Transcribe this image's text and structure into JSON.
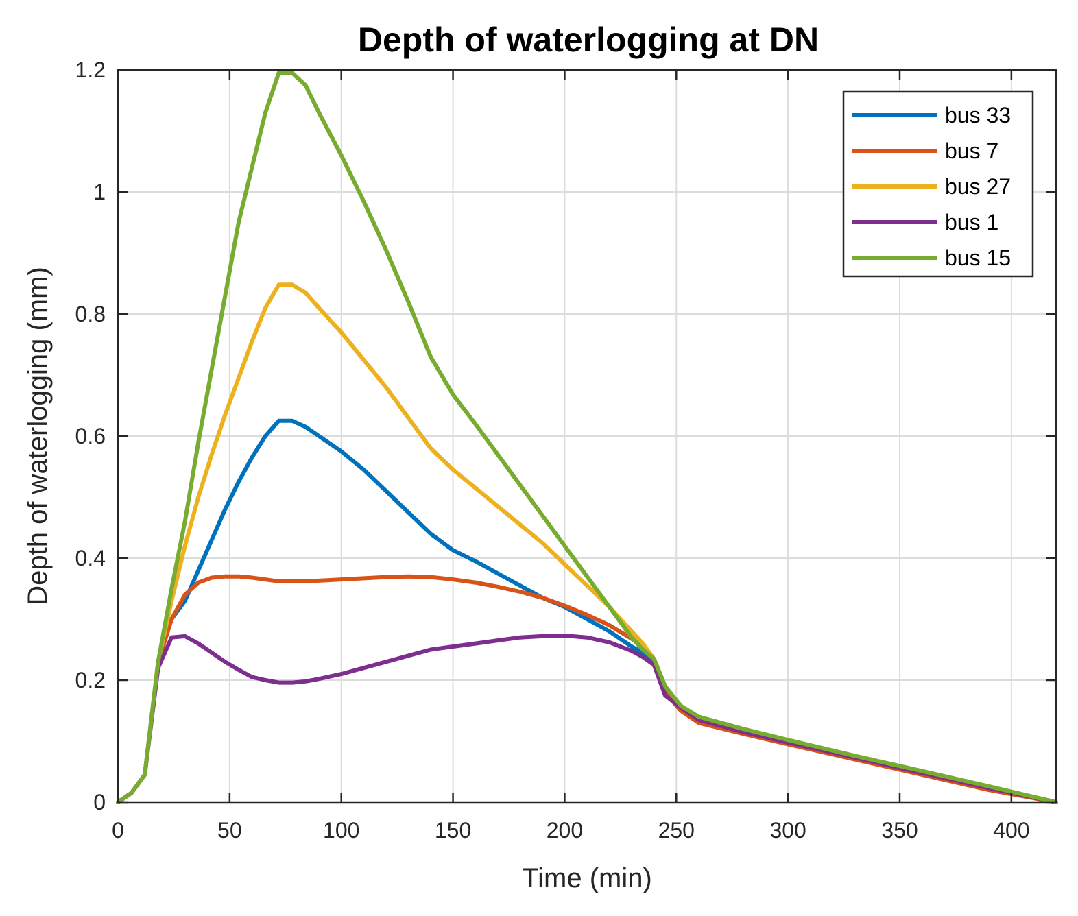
{
  "chart_data": {
    "type": "line",
    "title": "Depth of waterlogging at DN",
    "xlabel": "Time (min)",
    "ylabel": "Depth of waterlogging (mm)",
    "xlim": [
      0,
      420
    ],
    "ylim": [
      0,
      1.2
    ],
    "xticks": [
      0,
      50,
      100,
      150,
      200,
      250,
      300,
      350,
      400
    ],
    "xtick_labels": [
      "0",
      "50",
      "100",
      "150",
      "200",
      "250",
      "300",
      "350",
      "400"
    ],
    "yticks": [
      0,
      0.2,
      0.4,
      0.6,
      0.8,
      1,
      1.2
    ],
    "ytick_labels": [
      "0",
      "0.2",
      "0.4",
      "0.6",
      "0.8",
      "1",
      "1.2"
    ],
    "grid": true,
    "legend_position": "top-right",
    "series": [
      {
        "name": "bus 33",
        "color": "#0072BD",
        "x": [
          0,
          6,
          12,
          18,
          24,
          30,
          36,
          42,
          48,
          54,
          60,
          66,
          72,
          78,
          84,
          90,
          100,
          110,
          120,
          130,
          140,
          150,
          160,
          170,
          180,
          190,
          200,
          210,
          220,
          230,
          235,
          240,
          245,
          252,
          260,
          280,
          300,
          330,
          360,
          390,
          420
        ],
        "y": [
          0,
          0.015,
          0.045,
          0.23,
          0.3,
          0.33,
          0.38,
          0.43,
          0.48,
          0.525,
          0.565,
          0.6,
          0.625,
          0.625,
          0.615,
          0.6,
          0.575,
          0.545,
          0.51,
          0.475,
          0.44,
          0.413,
          0.395,
          0.375,
          0.355,
          0.335,
          0.32,
          0.3,
          0.28,
          0.255,
          0.245,
          0.23,
          0.185,
          0.155,
          0.135,
          0.115,
          0.1,
          0.075,
          0.05,
          0.025,
          0
        ]
      },
      {
        "name": "bus 7",
        "color": "#D95319",
        "x": [
          0,
          6,
          12,
          18,
          24,
          30,
          36,
          42,
          48,
          54,
          60,
          66,
          72,
          78,
          84,
          90,
          100,
          110,
          120,
          130,
          140,
          150,
          160,
          170,
          180,
          190,
          200,
          210,
          220,
          230,
          235,
          240,
          245,
          252,
          260,
          280,
          300,
          330,
          360,
          390,
          420
        ],
        "y": [
          0,
          0.015,
          0.045,
          0.23,
          0.3,
          0.34,
          0.36,
          0.368,
          0.37,
          0.37,
          0.368,
          0.365,
          0.362,
          0.362,
          0.362,
          0.363,
          0.365,
          0.367,
          0.369,
          0.37,
          0.369,
          0.365,
          0.36,
          0.353,
          0.345,
          0.335,
          0.322,
          0.307,
          0.29,
          0.268,
          0.255,
          0.235,
          0.18,
          0.15,
          0.13,
          0.112,
          0.095,
          0.07,
          0.045,
          0.02,
          0
        ]
      },
      {
        "name": "bus 27",
        "color": "#EDB120",
        "x": [
          0,
          6,
          12,
          18,
          24,
          30,
          36,
          42,
          48,
          54,
          60,
          66,
          72,
          78,
          84,
          90,
          100,
          110,
          120,
          130,
          140,
          150,
          160,
          170,
          180,
          190,
          200,
          210,
          220,
          230,
          235,
          240,
          245,
          252,
          260,
          280,
          300,
          330,
          360,
          390,
          420
        ],
        "y": [
          0,
          0.015,
          0.045,
          0.23,
          0.33,
          0.42,
          0.5,
          0.57,
          0.635,
          0.695,
          0.755,
          0.81,
          0.848,
          0.848,
          0.835,
          0.81,
          0.77,
          0.725,
          0.68,
          0.63,
          0.58,
          0.545,
          0.515,
          0.485,
          0.455,
          0.425,
          0.39,
          0.355,
          0.32,
          0.28,
          0.26,
          0.235,
          0.19,
          0.158,
          0.138,
          0.118,
          0.1,
          0.075,
          0.05,
          0.025,
          0
        ]
      },
      {
        "name": "bus 1",
        "color": "#7E2F8E",
        "x": [
          0,
          6,
          12,
          18,
          24,
          30,
          36,
          42,
          48,
          54,
          60,
          66,
          72,
          78,
          84,
          90,
          100,
          110,
          120,
          130,
          140,
          150,
          160,
          170,
          180,
          190,
          200,
          210,
          220,
          230,
          235,
          240,
          245,
          252,
          260,
          280,
          300,
          330,
          360,
          390,
          420
        ],
        "y": [
          0,
          0.015,
          0.045,
          0.22,
          0.27,
          0.272,
          0.26,
          0.245,
          0.23,
          0.217,
          0.205,
          0.2,
          0.196,
          0.196,
          0.198,
          0.202,
          0.21,
          0.22,
          0.23,
          0.24,
          0.25,
          0.255,
          0.26,
          0.265,
          0.27,
          0.272,
          0.273,
          0.27,
          0.262,
          0.248,
          0.238,
          0.225,
          0.175,
          0.155,
          0.135,
          0.115,
          0.098,
          0.073,
          0.048,
          0.023,
          0
        ]
      },
      {
        "name": "bus 15",
        "color": "#77AC30",
        "x": [
          0,
          6,
          12,
          18,
          24,
          30,
          36,
          42,
          48,
          54,
          60,
          66,
          72,
          78,
          84,
          90,
          100,
          110,
          120,
          130,
          140,
          150,
          160,
          170,
          180,
          190,
          200,
          210,
          220,
          230,
          235,
          240,
          245,
          252,
          260,
          280,
          300,
          330,
          360,
          390,
          420
        ],
        "y": [
          0,
          0.015,
          0.045,
          0.23,
          0.35,
          0.46,
          0.59,
          0.71,
          0.83,
          0.95,
          1.04,
          1.13,
          1.195,
          1.195,
          1.175,
          1.13,
          1.06,
          0.985,
          0.905,
          0.82,
          0.73,
          0.668,
          0.62,
          0.57,
          0.52,
          0.47,
          0.42,
          0.37,
          0.32,
          0.27,
          0.25,
          0.235,
          0.19,
          0.158,
          0.14,
          0.12,
          0.102,
          0.076,
          0.051,
          0.026,
          0
        ]
      }
    ]
  }
}
